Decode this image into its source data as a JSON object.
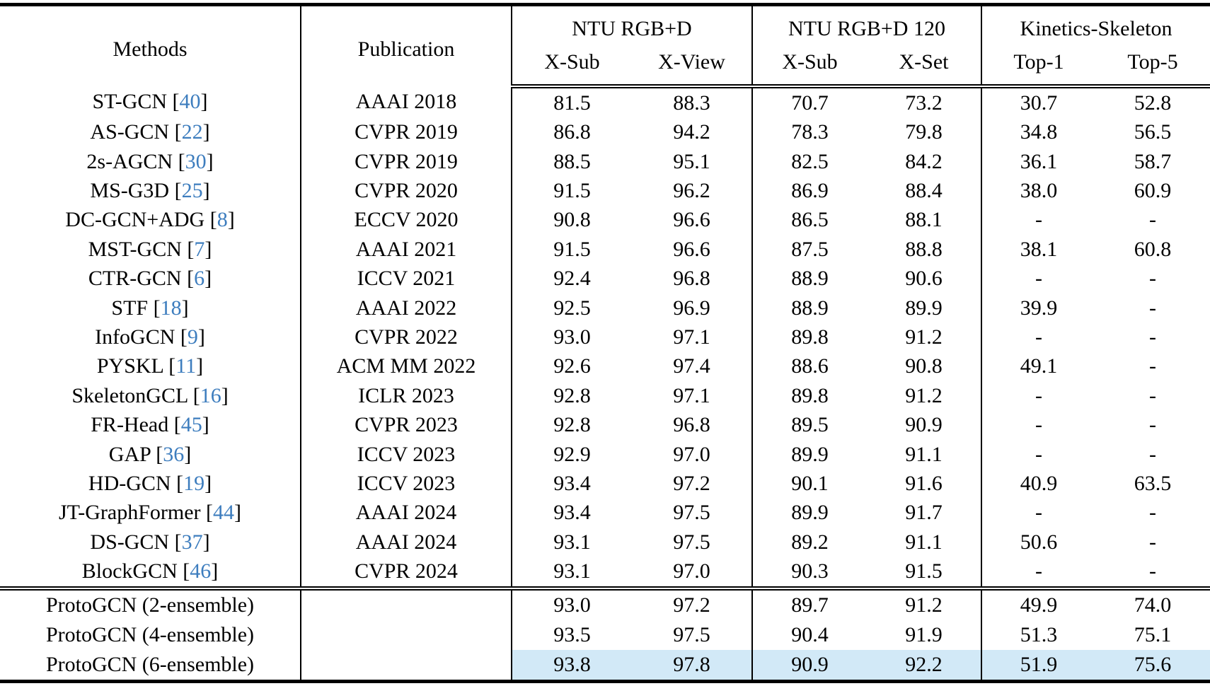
{
  "table": {
    "header": {
      "methods": "Methods",
      "publication": "Publication",
      "groups": [
        {
          "label": "NTU RGB+D",
          "sub": [
            "X-Sub",
            "X-View"
          ]
        },
        {
          "label": "NTU RGB+D 120",
          "sub": [
            "X-Sub",
            "X-Set"
          ]
        },
        {
          "label": "Kinetics-Skeleton",
          "sub": [
            "Top-1",
            "Top-5"
          ]
        }
      ]
    },
    "rows": [
      {
        "method": "ST-GCN",
        "ref": "40",
        "publication": "AAAI 2018",
        "values": [
          "81.5",
          "88.3",
          "70.7",
          "73.2",
          "30.7",
          "52.8"
        ]
      },
      {
        "method": "AS-GCN",
        "ref": "22",
        "publication": "CVPR 2019",
        "values": [
          "86.8",
          "94.2",
          "78.3",
          "79.8",
          "34.8",
          "56.5"
        ]
      },
      {
        "method": "2s-AGCN",
        "ref": "30",
        "publication": "CVPR 2019",
        "values": [
          "88.5",
          "95.1",
          "82.5",
          "84.2",
          "36.1",
          "58.7"
        ]
      },
      {
        "method": "MS-G3D",
        "ref": "25",
        "publication": "CVPR 2020",
        "values": [
          "91.5",
          "96.2",
          "86.9",
          "88.4",
          "38.0",
          "60.9"
        ]
      },
      {
        "method": "DC-GCN+ADG",
        "ref": "8",
        "publication": "ECCV 2020",
        "values": [
          "90.8",
          "96.6",
          "86.5",
          "88.1",
          "-",
          "-"
        ]
      },
      {
        "method": "MST-GCN",
        "ref": "7",
        "publication": "AAAI 2021",
        "values": [
          "91.5",
          "96.6",
          "87.5",
          "88.8",
          "38.1",
          "60.8"
        ]
      },
      {
        "method": "CTR-GCN",
        "ref": "6",
        "publication": "ICCV 2021",
        "values": [
          "92.4",
          "96.8",
          "88.9",
          "90.6",
          "-",
          "-"
        ]
      },
      {
        "method": "STF",
        "ref": "18",
        "publication": "AAAI 2022",
        "values": [
          "92.5",
          "96.9",
          "88.9",
          "89.9",
          "39.9",
          "-"
        ]
      },
      {
        "method": "InfoGCN",
        "ref": "9",
        "publication": "CVPR 2022",
        "values": [
          "93.0",
          "97.1",
          "89.8",
          "91.2",
          "-",
          "-"
        ]
      },
      {
        "method": "PYSKL",
        "ref": "11",
        "publication": "ACM MM 2022",
        "values": [
          "92.6",
          "97.4",
          "88.6",
          "90.8",
          "49.1",
          "-"
        ]
      },
      {
        "method": "SkeletonGCL",
        "ref": "16",
        "publication": "ICLR 2023",
        "values": [
          "92.8",
          "97.1",
          "89.8",
          "91.2",
          "-",
          "-"
        ]
      },
      {
        "method": "FR-Head",
        "ref": "45",
        "publication": "CVPR 2023",
        "values": [
          "92.8",
          "96.8",
          "89.5",
          "90.9",
          "-",
          "-"
        ]
      },
      {
        "method": "GAP",
        "ref": "36",
        "publication": "ICCV 2023",
        "values": [
          "92.9",
          "97.0",
          "89.9",
          "91.1",
          "-",
          "-"
        ]
      },
      {
        "method": "HD-GCN",
        "ref": "19",
        "publication": "ICCV 2023",
        "values": [
          "93.4",
          "97.2",
          "90.1",
          "91.6",
          "40.9",
          "63.5"
        ]
      },
      {
        "method": "JT-GraphFormer",
        "ref": "44",
        "publication": "AAAI 2024",
        "values": [
          "93.4",
          "97.5",
          "89.9",
          "91.7",
          "-",
          "-"
        ]
      },
      {
        "method": "DS-GCN",
        "ref": "37",
        "publication": "AAAI 2024",
        "values": [
          "93.1",
          "97.5",
          "89.2",
          "91.1",
          "50.6",
          "-"
        ]
      },
      {
        "method": "BlockGCN",
        "ref": "46",
        "publication": "CVPR 2024",
        "values": [
          "93.1",
          "97.0",
          "90.3",
          "91.5",
          "-",
          "-"
        ]
      }
    ],
    "proto_rows": [
      {
        "method": "ProtoGCN (2-ensemble)",
        "publication": "",
        "values": [
          "93.0",
          "97.2",
          "89.7",
          "91.2",
          "49.9",
          "74.0"
        ],
        "bold": false,
        "highlight": false
      },
      {
        "method": "ProtoGCN (4-ensemble)",
        "publication": "",
        "values": [
          "93.5",
          "97.5",
          "90.4",
          "91.9",
          "51.3",
          "75.1"
        ],
        "bold": false,
        "highlight": false
      },
      {
        "method": "ProtoGCN (6-ensemble)",
        "publication": "",
        "values": [
          "93.8",
          "97.8",
          "90.9",
          "92.2",
          "51.9",
          "75.6"
        ],
        "bold": true,
        "highlight": true
      }
    ],
    "citation_brackets": {
      "open": "[",
      "close": "]"
    },
    "dash": "-",
    "colors": {
      "citation": "#3d7dbe",
      "highlight": "#d2e9f7",
      "rule": "#000000",
      "text": "#000000",
      "background": "#ffffff"
    }
  }
}
